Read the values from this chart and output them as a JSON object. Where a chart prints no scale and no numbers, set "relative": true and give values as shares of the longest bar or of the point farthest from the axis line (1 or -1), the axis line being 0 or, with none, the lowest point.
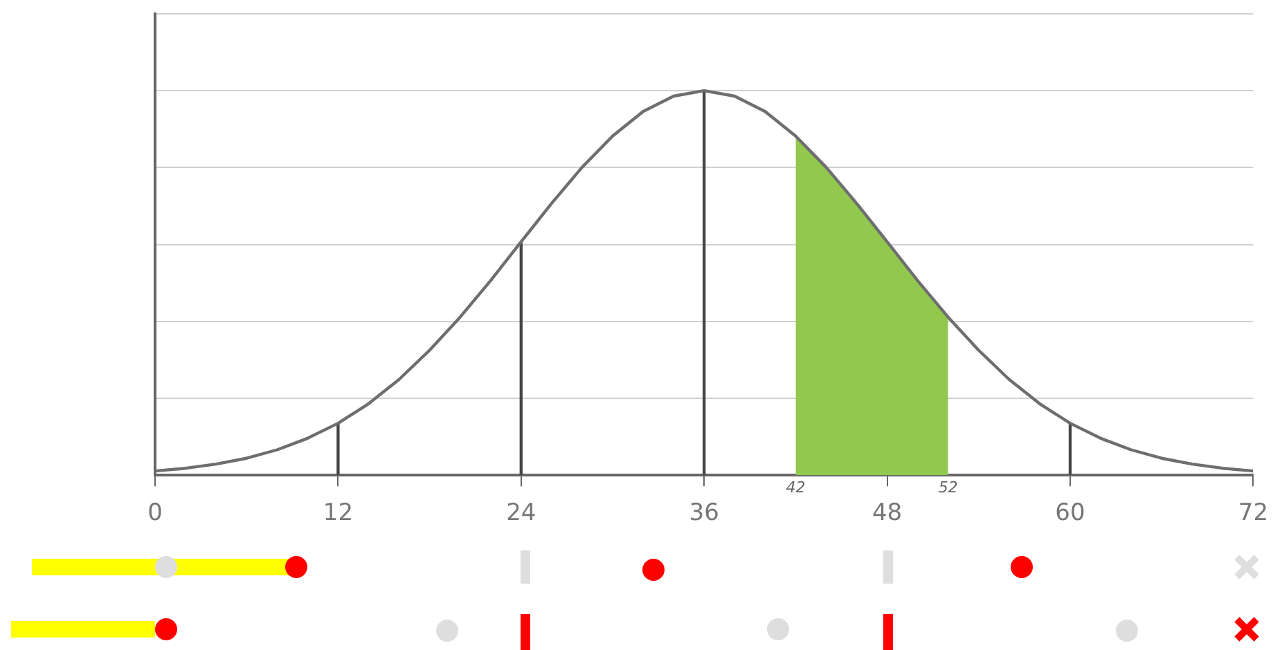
{
  "chart_data": {
    "type": "line",
    "relative": true,
    "x": [
      0,
      2,
      4,
      6,
      8,
      10,
      12,
      14,
      16,
      18,
      20,
      22,
      24,
      26,
      28,
      30,
      32,
      34,
      36,
      38,
      40,
      42,
      44,
      46,
      48,
      50,
      52,
      54,
      56,
      58,
      60,
      62,
      64,
      66,
      68,
      70,
      72
    ],
    "series": [
      {
        "color": "#6e6e6e",
        "values": [
          0.011,
          0.018,
          0.029,
          0.044,
          0.066,
          0.096,
          0.135,
          0.186,
          0.249,
          0.325,
          0.411,
          0.506,
          0.607,
          0.707,
          0.801,
          0.882,
          0.946,
          0.986,
          1,
          0.986,
          0.946,
          0.882,
          0.801,
          0.707,
          0.607,
          0.506,
          0.411,
          0.325,
          0.249,
          0.186,
          0.135,
          0.096,
          0.066,
          0.044,
          0.029,
          0.018,
          0.011
        ]
      },
      {
        "type": "area",
        "color": "#92c84e",
        "x": [
          42,
          44,
          46,
          48,
          50,
          52
        ],
        "values": [
          0.882,
          0.801,
          0.707,
          0.607,
          0.506,
          0.411
        ]
      },
      {
        "type": "bar",
        "color": "#444444",
        "x": [
          12,
          24,
          36,
          60
        ],
        "values": [
          0.135,
          0.607,
          1,
          0.135
        ]
      }
    ],
    "xlim": [
      0,
      72
    ],
    "xticks": [
      0,
      12,
      24,
      36,
      48,
      60,
      72
    ],
    "annotations": [
      "42",
      "52"
    ],
    "grid": true,
    "legend": false,
    "marker": "none",
    "line_style": "solid",
    "tick_labels": "x"
  }
}
